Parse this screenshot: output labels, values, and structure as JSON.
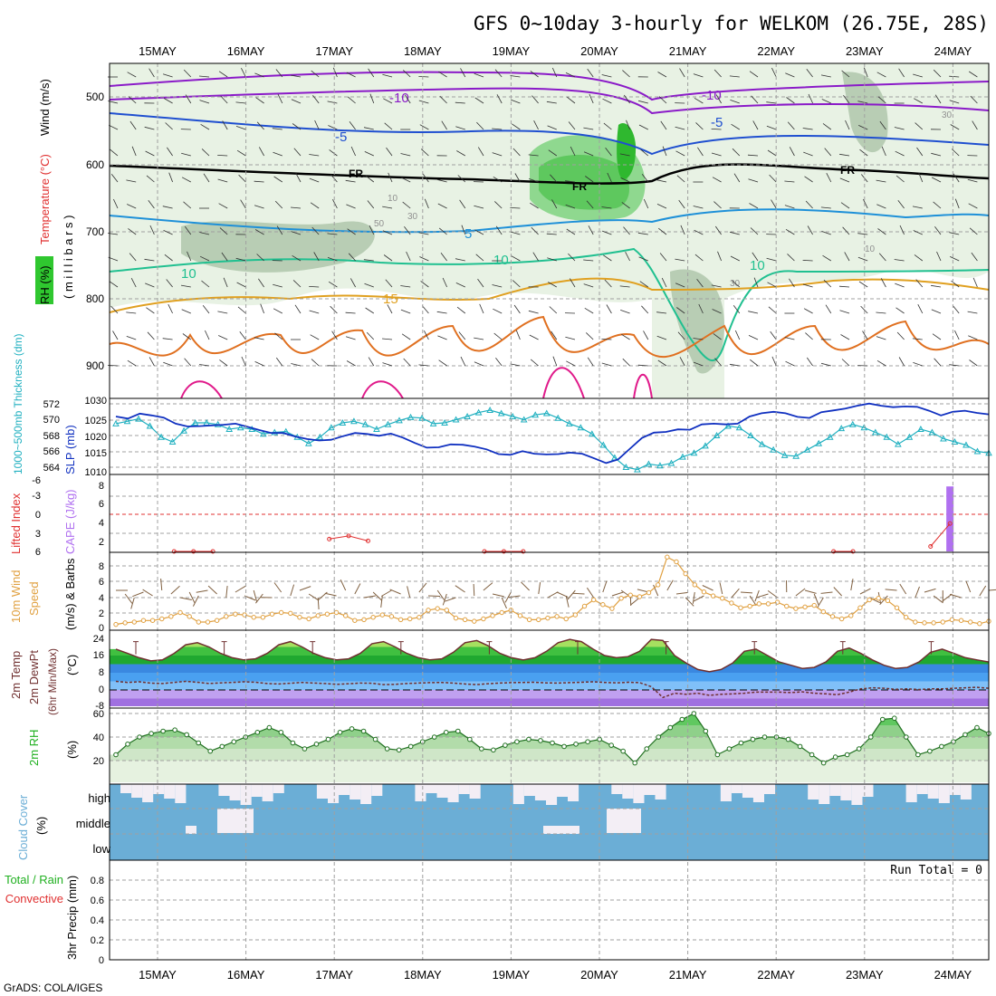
{
  "title": "GFS 0~10day 3-hourly for WELKOM (26.75E, 28S)",
  "credit": "GrADS: COLA/IGES",
  "days": [
    "15MAY",
    "16MAY",
    "17MAY",
    "18MAY",
    "19MAY",
    "20MAY",
    "21MAY",
    "22MAY",
    "23MAY",
    "24MAY"
  ],
  "colors": {
    "frame": "#000000",
    "grid": "#a0a0a0",
    "rh_band": "#2fc72f",
    "temp_label": "#e03030",
    "thickness": "#20b0c0",
    "slp": "#1030c0",
    "lifted": "#e03030",
    "cape": "#b070f0",
    "wind10": "#e0a040",
    "barb": "#806040",
    "rh2m": "#20b020",
    "cloud": "#6baed6",
    "cloud_clear": "#f3eef5",
    "precip_total": "#20b020",
    "precip_conv": "#e03030"
  },
  "labels": {
    "upper_panel": {
      "rh": "RH (%)",
      "temp": "Temperature (°C)",
      "wind": "Wind (m/s)",
      "pressure": "( m i l l i b a r s )",
      "pressure_ticks": [
        "500",
        "600",
        "700",
        "800",
        "900"
      ],
      "isotherms": [
        {
          "text": "-10",
          "color": "#8a1ac8"
        },
        {
          "text": "-10",
          "color": "#8a1ac8"
        },
        {
          "text": "-5",
          "color": "#1f4fd0"
        },
        {
          "text": "-5",
          "color": "#1f4fd0"
        },
        {
          "text": "FR",
          "color": "#000000"
        },
        {
          "text": "FR",
          "color": "#000000"
        },
        {
          "text": "FR",
          "color": "#000000"
        },
        {
          "text": "5",
          "color": "#1e90d8"
        },
        {
          "text": "10",
          "color": "#20c090"
        },
        {
          "text": "10",
          "color": "#20c090"
        },
        {
          "text": "10",
          "color": "#20c090"
        },
        {
          "text": "15",
          "color": "#e0a020"
        }
      ],
      "rh_contour_labels": [
        "10",
        "30",
        "50",
        "30",
        "10",
        "30"
      ]
    },
    "thickness_panel": {
      "left": "1000~500mb Thickness (dm)",
      "right": "SLP (mb)",
      "left_ticks": [
        "572",
        "570",
        "568",
        "566",
        "564"
      ],
      "right_ticks": [
        "1030",
        "1025",
        "1020",
        "1015",
        "1010"
      ]
    },
    "cape_panel": {
      "left": "Lifted Index",
      "right": "CAPE (J/kg)",
      "left_ticks": [
        "-6",
        "-3",
        "0",
        "3",
        "6"
      ],
      "right_ticks": [
        "8",
        "6",
        "4",
        "2"
      ]
    },
    "wind_panel": {
      "l1": "10m Wind",
      "l2": "Speed",
      "l3": "(m/s) & Barbs",
      "ticks": [
        "8",
        "6",
        "4",
        "2",
        "0"
      ]
    },
    "temp_panel": {
      "l1": "2m Temp",
      "l2": "2m DewPt",
      "l3": "(6hr Min/Max)",
      "unit": "(°C)",
      "ticks": [
        "24",
        "16",
        "8",
        "0",
        "-8"
      ]
    },
    "rh_panel": {
      "l1": "2m RH",
      "unit": "(%)",
      "ticks": [
        "60",
        "40",
        "20"
      ]
    },
    "cloud_panel": {
      "l1": "Cloud Cover",
      "unit": "(%)",
      "levels": [
        "high",
        "middle",
        "low"
      ]
    },
    "precip_panel": {
      "l1": "Total / Rain",
      "l2": "Convective",
      "l3": "3hr Precip (mm)",
      "ticks": [
        "0.8",
        "0.6",
        "0.4",
        "0.2",
        "0"
      ],
      "run_total": "Run Total = 0"
    }
  },
  "chart_data": [
    {
      "type": "line",
      "title": "1000~500mb Thickness (dm) and SLP (mb)",
      "x_unit": "3-hourly steps from 15MAY 00Z",
      "series": [
        {
          "name": "1000~500mb Thickness (dm)",
          "values": [
            569.5,
            569.8,
            570.1,
            569.2,
            567.8,
            567.2,
            568.6,
            569.6,
            569.6,
            569.4,
            568.8,
            569.0,
            568.8,
            568.2,
            568.4,
            568.5,
            567.8,
            567.0,
            567.8,
            569.0,
            569.6,
            569.8,
            569.4,
            568.8,
            569.4,
            569.9,
            570.3,
            570.2,
            569.5,
            569.6,
            570.0,
            570.4,
            570.9,
            571.2,
            570.8,
            570.4,
            570.0,
            570.6,
            570.8,
            570.2,
            569.5,
            569.0,
            568.2,
            566.8,
            565.2,
            564.0,
            563.7,
            564.4,
            564.2,
            564.5,
            565.3,
            565.8,
            566.7,
            568.0,
            569.2,
            569.0,
            568.0,
            566.9,
            566.2,
            565.5,
            565.4,
            566.2,
            567.0,
            567.8,
            568.9,
            569.4,
            569.0,
            568.4,
            567.8,
            566.9,
            567.8,
            568.8,
            568.4,
            567.6,
            567.2,
            566.8,
            566.0,
            565.8
          ]
        },
        {
          "name": "SLP (mb)",
          "values": [
            1025.2,
            1024.6,
            1026.0,
            1025.5,
            1024.9,
            1023.2,
            1022.4,
            1022.5,
            1022.7,
            1022.9,
            1023.2,
            1022.3,
            1021.4,
            1020.6,
            1020.6,
            1019.6,
            1018.9,
            1018.5,
            1018.7,
            1019.7,
            1020.6,
            1020.3,
            1019.8,
            1020.4,
            1019.3,
            1017.8,
            1016.5,
            1016.6,
            1017.4,
            1017.3,
            1016.8,
            1016.0,
            1014.7,
            1014.5,
            1015.5,
            1014.8,
            1014.6,
            1014.7,
            1015.1,
            1014.8,
            1013.5,
            1012.2,
            1013.2,
            1016.2,
            1019.2,
            1020.7,
            1020.9,
            1021.6,
            1021.5,
            1023.0,
            1023.2,
            1023.0,
            1023.2,
            1025.2,
            1026.1,
            1026.5,
            1026.1,
            1025.1,
            1024.8,
            1026.4,
            1026.9,
            1027.4,
            1028.2,
            1028.8,
            1028.2,
            1027.8,
            1028.0,
            1027.9,
            1026.8,
            1025.5,
            1026.5,
            1026.8,
            1026.2,
            1025.8
          ]
        }
      ],
      "ylim_left": [
        563,
        572
      ],
      "ylim_right": [
        1009,
        1030
      ]
    },
    {
      "type": "line",
      "title": "Lifted Index and CAPE (J/kg)",
      "series": [
        {
          "name": "Lifted Index",
          "values": [
            10,
            10,
            10,
            7,
            6.3,
            6.4,
            10,
            10,
            10,
            10,
            10,
            4,
            3.5,
            4.3,
            10,
            10,
            10,
            10,
            10,
            6.6,
            6.2,
            6.2,
            10,
            10,
            10,
            10,
            10,
            10,
            10,
            10,
            10,
            10,
            10,
            10,
            10,
            10,
            10,
            6.3,
            6.5,
            10,
            10,
            10,
            5.2,
            1.5,
            10,
            10
          ]
        },
        {
          "name": "CAPE (J/kg)",
          "values": [
            0,
            0,
            0,
            0,
            0,
            0,
            0,
            0,
            0,
            0,
            0,
            0,
            0,
            0,
            0,
            0,
            0,
            0,
            0,
            0,
            0,
            0,
            0,
            0,
            0,
            0,
            0,
            0,
            0,
            0,
            0,
            0,
            0,
            0,
            0,
            0,
            0,
            0,
            0,
            0,
            0,
            0,
            0,
            8.5,
            0,
            0
          ]
        }
      ],
      "ylim_li": [
        6,
        -6
      ],
      "ylim_cape": [
        0,
        9
      ]
    },
    {
      "type": "line",
      "title": "10m Wind Speed (m/s)",
      "series": [
        {
          "name": "10m Wind Speed",
          "values": [
            0.5,
            0.7,
            0.8,
            1.0,
            1.0,
            1.2,
            1.5,
            2.0,
            1.5,
            0.8,
            0.8,
            1.0,
            1.5,
            1.8,
            1.7,
            1.4,
            1.4,
            1.8,
            2.0,
            1.9,
            1.4,
            1.2,
            1.6,
            1.8,
            2.0,
            1.6,
            1.0,
            1.1,
            1.4,
            1.7,
            1.5,
            1.1,
            1.2,
            1.4,
            2.3,
            2.5,
            2.3,
            1.3,
            1.1,
            0.9,
            1.2,
            1.6,
            2.0,
            2.3,
            1.6,
            1.1,
            1.1,
            1.3,
            1.5,
            1.2,
            1.7,
            2.8,
            3.6,
            3.0,
            2.5,
            3.8,
            4.2,
            4.0,
            4.5,
            5.5,
            9.0,
            8.4,
            6.9,
            5.5,
            4.6,
            4.1,
            3.8,
            3.2,
            2.6,
            2.8,
            3.1,
            3.1,
            3.3,
            2.8,
            2.5,
            2.7,
            2.9,
            2.1,
            1.5,
            1.2,
            1.6,
            2.6,
            3.6,
            3.8,
            3.5,
            2.6,
            1.4,
            0.8,
            0.7,
            0.7,
            0.8,
            1.1,
            1.0,
            0.8,
            0.6,
            0.9
          ]
        }
      ],
      "ylim": [
        0,
        9.5
      ]
    },
    {
      "type": "area",
      "title": "2m Temp and 2m DewPt (°C)",
      "series": [
        {
          "name": "2m Temp",
          "values": [
            19,
            17,
            15,
            13.5,
            14,
            17,
            21,
            22,
            20,
            17,
            15,
            14,
            14.5,
            17,
            21,
            22.5,
            20,
            17,
            15,
            14,
            14.5,
            17,
            21.5,
            22.5,
            20,
            17,
            15,
            14,
            14.5,
            17.5,
            22,
            23,
            20.5,
            17,
            15,
            14,
            15,
            18,
            22,
            23.5,
            22.5,
            19,
            16,
            15,
            15.5,
            18,
            23.5,
            23,
            16,
            12.5,
            9.5,
            8.5,
            9.5,
            12.5,
            18,
            19,
            16,
            13,
            11.5,
            10,
            10.5,
            13,
            18,
            19.5,
            17,
            14,
            11.5,
            10,
            10.5,
            13,
            17.5,
            19,
            17,
            15,
            14,
            13
          ]
        },
        {
          "name": "2m DewPt",
          "values": [
            4,
            3.5,
            3.8,
            3.2,
            3,
            3.5,
            4,
            3.6,
            3,
            3.3,
            3.5,
            3.8,
            3.6,
            3,
            2.8,
            3.1,
            3.5,
            3.2,
            3,
            2.6,
            2.9,
            3.2,
            3.1,
            2.5,
            2.6,
            3,
            3.2,
            3.4,
            3.5,
            3.2,
            2.8,
            2.5,
            2.9,
            3.2,
            3.4,
            3.5,
            3.6,
            3.3,
            3.2,
            3.4,
            3.6,
            3.8,
            3.5,
            3.3,
            3.6,
            3.4,
            1.5,
            -3.5,
            -1.5,
            -2,
            -1.5,
            -2.5,
            -2,
            -1.8,
            -1.5,
            -1,
            -1,
            -1,
            -1.2,
            -0.9,
            -1.5,
            -1.8,
            -2.2,
            -1,
            0.5,
            1,
            0.8,
            0.3,
            0.5,
            0.2,
            0.5,
            0.5,
            0.8,
            1,
            1.2,
            0.8
          ]
        }
      ],
      "ylim": [
        -8,
        26
      ]
    },
    {
      "type": "area",
      "title": "2m RH (%)",
      "series": [
        {
          "name": "2m RH",
          "values": [
            25,
            34,
            40,
            43,
            45,
            46,
            42,
            35,
            28,
            32,
            36,
            40,
            44,
            48,
            44,
            35,
            30,
            34,
            38,
            44,
            47,
            45,
            38,
            30,
            29,
            32,
            36,
            40,
            44,
            45,
            38,
            30,
            29,
            33,
            36,
            38,
            37,
            35,
            32,
            34,
            36,
            38,
            33,
            28,
            18,
            30,
            40,
            48,
            55,
            60,
            45,
            25,
            30,
            35,
            38,
            40,
            40,
            38,
            32,
            25,
            18,
            23,
            25,
            30,
            40,
            55,
            56,
            40,
            25,
            28,
            32,
            36,
            42,
            48,
            43
          ]
        }
      ],
      "ylim": [
        0,
        65
      ]
    },
    {
      "type": "bar",
      "title": "3hr Precip (mm)",
      "categories": [
        "15MAY",
        "16MAY",
        "17MAY",
        "18MAY",
        "19MAY",
        "20MAY",
        "21MAY",
        "22MAY",
        "23MAY",
        "24MAY"
      ],
      "series": [
        {
          "name": "Total / Rain",
          "values": [
            0,
            0,
            0,
            0,
            0,
            0,
            0,
            0,
            0,
            0
          ]
        },
        {
          "name": "Convective",
          "values": [
            0,
            0,
            0,
            0,
            0,
            0,
            0,
            0,
            0,
            0
          ]
        }
      ],
      "ylim": [
        0,
        0.9
      ]
    }
  ]
}
